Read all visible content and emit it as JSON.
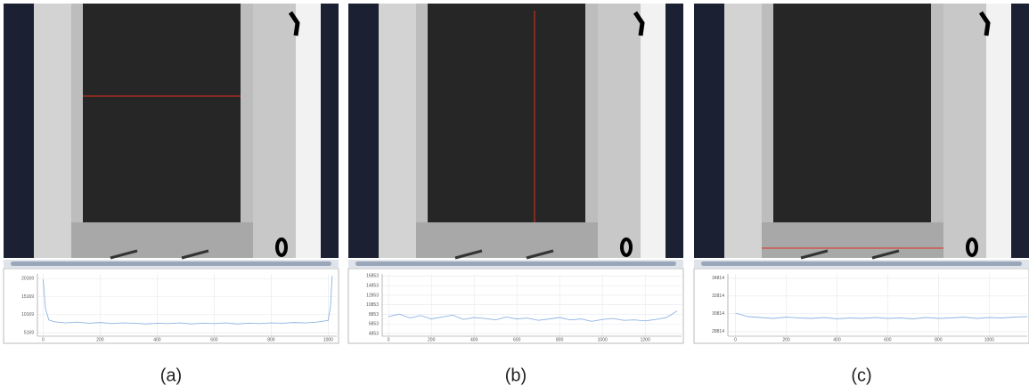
{
  "chart_data": [
    {
      "type": "line",
      "caption": "(a)",
      "color": "#8fb4e3",
      "grid": true,
      "x": [
        0,
        8,
        20,
        40,
        80,
        120,
        160,
        200,
        240,
        280,
        320,
        360,
        400,
        440,
        480,
        520,
        560,
        600,
        640,
        680,
        720,
        760,
        800,
        840,
        880,
        920,
        960,
        1000,
        1008,
        1014
      ],
      "values": [
        20000,
        12000,
        8700,
        8200,
        7900,
        8100,
        7800,
        8000,
        7700,
        7900,
        7800,
        7600,
        7800,
        7700,
        7900,
        7600,
        7800,
        7700,
        7900,
        7600,
        7800,
        7700,
        7900,
        7800,
        8000,
        7900,
        8100,
        8600,
        12500,
        21000
      ],
      "xlim": [
        -20,
        1030
      ],
      "ylim": [
        4200,
        21500
      ],
      "xticks": [
        0,
        200,
        400,
        600,
        800,
        1000
      ],
      "yticks": [
        5169,
        10169,
        15169,
        20169
      ]
    },
    {
      "type": "line",
      "caption": "(b)",
      "color": "#8fb4e3",
      "grid": true,
      "x": [
        0,
        50,
        100,
        150,
        200,
        250,
        300,
        350,
        400,
        450,
        500,
        550,
        600,
        650,
        700,
        750,
        800,
        850,
        900,
        950,
        1000,
        1050,
        1100,
        1150,
        1200,
        1250,
        1300,
        1350
      ],
      "values": [
        8400,
        8900,
        8100,
        8600,
        7900,
        8300,
        8700,
        7800,
        8200,
        8000,
        7700,
        8300,
        7900,
        8100,
        7600,
        7900,
        8200,
        7700,
        7900,
        7400,
        7800,
        8000,
        7600,
        7700,
        7500,
        7800,
        8200,
        9600
      ],
      "xlim": [
        -30,
        1370
      ],
      "ylim": [
        4300,
        17300
      ],
      "xticks": [
        0,
        200,
        400,
        600,
        800,
        1000,
        1200
      ],
      "yticks": [
        4853,
        6853,
        8853,
        10853,
        12853,
        14853,
        16853
      ]
    },
    {
      "type": "line",
      "caption": "(c)",
      "color": "#8fb4e3",
      "grid": true,
      "x": [
        0,
        50,
        100,
        150,
        200,
        250,
        300,
        350,
        400,
        450,
        500,
        550,
        600,
        650,
        700,
        750,
        800,
        850,
        900,
        950,
        1000,
        1050,
        1100,
        1150
      ],
      "values": [
        30900,
        30500,
        30400,
        30300,
        30450,
        30350,
        30300,
        30400,
        30250,
        30350,
        30300,
        30400,
        30300,
        30350,
        30250,
        30400,
        30300,
        30350,
        30450,
        30300,
        30400,
        30350,
        30450,
        30500
      ],
      "xlim": [
        -30,
        1150
      ],
      "ylim": [
        28300,
        35300
      ],
      "xticks": [
        0,
        200,
        400,
        600,
        800,
        1000
      ],
      "yticks": [
        28814,
        30814,
        32814,
        34814
      ]
    }
  ]
}
